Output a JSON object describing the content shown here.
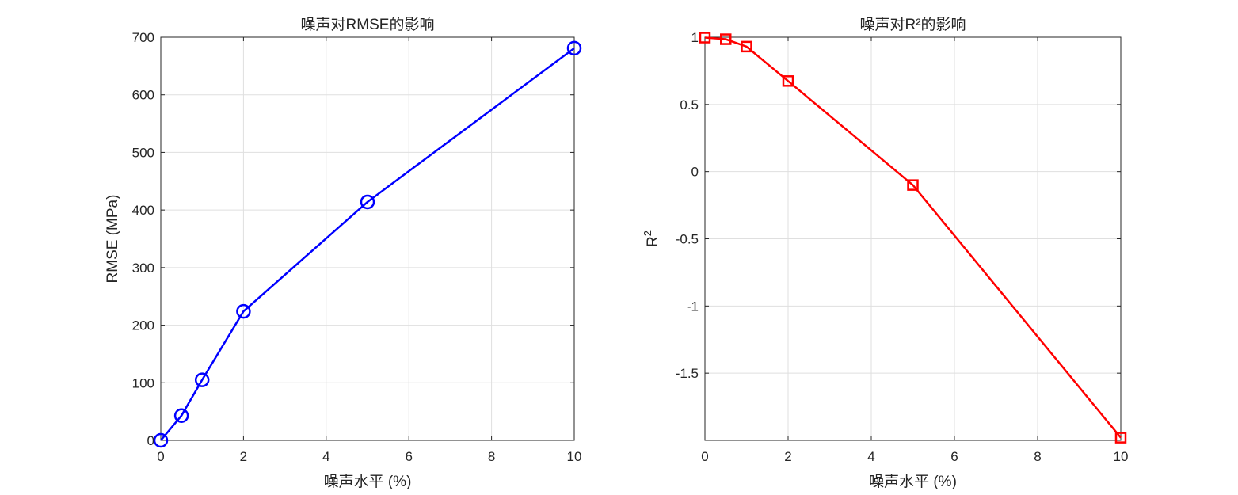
{
  "chart_data": [
    {
      "type": "line",
      "title": "噪声对RMSE的影响",
      "xlabel": "噪声水平 (%)",
      "ylabel": "RMSE (MPa)",
      "xlim": [
        0,
        10
      ],
      "ylim": [
        0,
        700
      ],
      "xticks": [
        0,
        2,
        4,
        6,
        8,
        10
      ],
      "yticks": [
        0,
        100,
        200,
        300,
        400,
        500,
        600,
        700
      ],
      "ytick_labels": [
        "0",
        "100",
        "200",
        "300",
        "400",
        "500",
        "600",
        "700"
      ],
      "grid": true,
      "marker": "circle",
      "color": "#0000ff",
      "x": [
        0,
        0.5,
        1,
        2,
        5,
        10
      ],
      "y": [
        0,
        43,
        105,
        224,
        414,
        681
      ]
    },
    {
      "type": "line",
      "title": "噪声对R²的影响",
      "xlabel": "噪声水平 (%)",
      "ylabel": "R",
      "ylabel_sup": "2",
      "xlim": [
        0,
        10
      ],
      "ylim": [
        -2,
        1
      ],
      "xticks": [
        0,
        2,
        4,
        6,
        8,
        10
      ],
      "yticks": [
        -1.5,
        -1,
        -0.5,
        0,
        0.5,
        1
      ],
      "ytick_labels": [
        "-1.5",
        "-1",
        "-0.5",
        "0",
        "0.5",
        "1"
      ],
      "grid": true,
      "marker": "square",
      "color": "#ff0000",
      "x": [
        0,
        0.5,
        1,
        2,
        5,
        10
      ],
      "y": [
        0.997,
        0.985,
        0.93,
        0.674,
        -0.1,
        -1.98
      ]
    }
  ]
}
